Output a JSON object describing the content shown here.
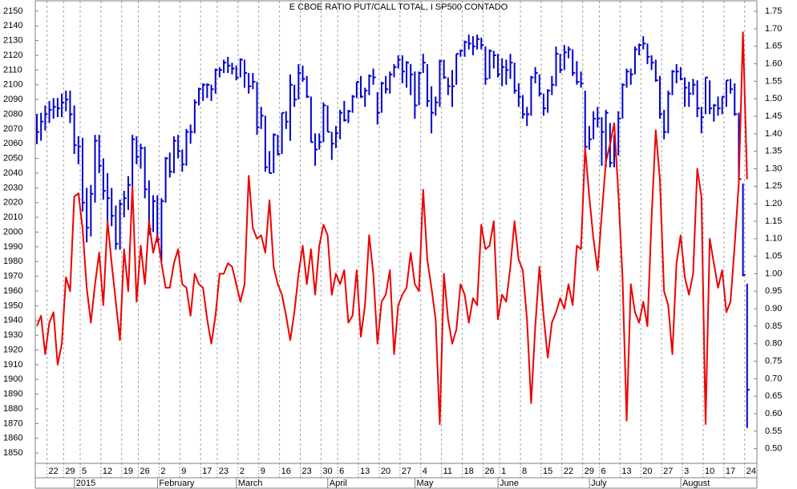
{
  "chart_data": {
    "type": "ohlc-line",
    "title": "E CBOE RATIO PUT/CALL TOTAL, I SP500 CONTADO",
    "categories": [
      null,
      null,
      null,
      "22",
      null,
      null,
      null,
      "29",
      null,
      null,
      null,
      "5",
      null,
      null,
      null,
      null,
      "12",
      null,
      null,
      null,
      null,
      "19",
      null,
      null,
      null,
      "26",
      null,
      null,
      null,
      null,
      "2",
      null,
      null,
      null,
      null,
      "9",
      null,
      null,
      null,
      null,
      "17",
      null,
      null,
      null,
      "23",
      null,
      null,
      null,
      null,
      "2",
      null,
      null,
      null,
      null,
      "9",
      null,
      null,
      null,
      null,
      "16",
      null,
      null,
      null,
      null,
      "23",
      null,
      null,
      null,
      null,
      "30",
      null,
      null,
      null,
      "6",
      null,
      null,
      null,
      null,
      "13",
      null,
      null,
      null,
      null,
      "20",
      null,
      null,
      null,
      null,
      "27",
      null,
      null,
      null,
      null,
      "4",
      null,
      null,
      null,
      null,
      "11",
      null,
      null,
      null,
      null,
      "18",
      null,
      null,
      null,
      null,
      "26",
      null,
      null,
      null,
      "1",
      null,
      null,
      null,
      null,
      "8",
      null,
      null,
      null,
      null,
      "15",
      null,
      null,
      null,
      null,
      "22",
      null,
      null,
      null,
      null,
      "29",
      null,
      null,
      null,
      "6",
      null,
      null,
      null,
      null,
      "13",
      null,
      null,
      null,
      null,
      "20",
      null,
      null,
      null,
      null,
      "27",
      null,
      null,
      null,
      null,
      "3",
      null,
      null,
      null,
      null,
      "10",
      null,
      null,
      null,
      null,
      "17",
      null,
      null,
      null,
      null,
      "24"
    ],
    "months": [
      null,
      null,
      null,
      null,
      null,
      null,
      null,
      null,
      null,
      null,
      "2015",
      null,
      null,
      null,
      null,
      null,
      null,
      null,
      null,
      null,
      null,
      null,
      null,
      null,
      null,
      null,
      null,
      null,
      null,
      null,
      "February",
      null,
      null,
      null,
      null,
      null,
      null,
      null,
      null,
      null,
      null,
      null,
      null,
      null,
      null,
      null,
      null,
      null,
      null,
      "March",
      null,
      null,
      null,
      null,
      null,
      null,
      null,
      null,
      null,
      null,
      null,
      null,
      null,
      null,
      null,
      null,
      null,
      null,
      null,
      null,
      null,
      "April",
      null,
      null,
      null,
      null,
      null,
      null,
      null,
      null,
      null,
      null,
      null,
      null,
      null,
      null,
      null,
      null,
      null,
      null,
      null,
      null,
      "May",
      null,
      null,
      null,
      null,
      null,
      null,
      null,
      null,
      null,
      null,
      null,
      null,
      null,
      null,
      null,
      null,
      null,
      null,
      null,
      "June",
      null,
      null,
      null,
      null,
      null,
      null,
      null,
      null,
      null,
      null,
      null,
      null,
      null,
      null,
      null,
      null,
      null,
      null,
      null,
      null,
      null,
      "July",
      null,
      null,
      null,
      null,
      null,
      null,
      null,
      null,
      null,
      null,
      null,
      null,
      null,
      null,
      null,
      null,
      null,
      null,
      null,
      null,
      null,
      "August",
      null,
      null,
      null,
      null,
      null,
      null,
      null,
      null,
      null,
      null,
      null,
      null,
      null,
      null,
      null
    ],
    "ohlc": {
      "color": "#0000cc",
      "high": [
        2080,
        2081,
        2086,
        2089,
        2091,
        2091,
        2094,
        2096,
        2096,
        2086,
        2065,
        2064,
        2030,
        2032,
        2066,
        2066,
        2050,
        2040,
        2030,
        2018,
        2022,
        2028,
        2038,
        2066,
        2065,
        2060,
        2058,
        2035,
        2025,
        2025,
        2023,
        2051,
        2054,
        2065,
        2066,
        2056,
        2070,
        2073,
        2090,
        2098,
        2101,
        2101,
        2100,
        2111,
        2112,
        2117,
        2119,
        2115,
        2113,
        2118,
        2117,
        2108,
        2108,
        2102,
        2085,
        2079,
        2055,
        2067,
        2066,
        2081,
        2082,
        2107,
        2100,
        2114,
        2113,
        2106,
        2092,
        2067,
        2067,
        2088,
        2086,
        2068,
        2072,
        2083,
        2089,
        2083,
        2093,
        2102,
        2106,
        2098,
        2107,
        2111,
        2095,
        2102,
        2106,
        2109,
        2114,
        2120,
        2120,
        2116,
        2114,
        2109,
        2109,
        2121,
        2114,
        2099,
        2092,
        2117,
        2117,
        2105,
        2110,
        2121,
        2124,
        2130,
        2134,
        2133,
        2134,
        2132,
        2126,
        2124,
        2123,
        2121,
        2118,
        2117,
        2121,
        2115,
        2101,
        2093,
        2085,
        2106,
        2112,
        2107,
        2094,
        2097,
        2106,
        2126,
        2121,
        2127,
        2126,
        2124,
        2116,
        2109,
        2096,
        2072,
        2082,
        2085,
        2078,
        2083,
        2074,
        2066,
        2082,
        2101,
        2111,
        2111,
        2126,
        2128,
        2133,
        2128,
        2120,
        2117,
        2106,
        2083,
        2096,
        2110,
        2114,
        2112,
        2105,
        2102,
        2104,
        2103,
        2085,
        2105,
        2103,
        2087,
        2092,
        2092,
        2103,
        2104,
        2101,
        2081,
        2033,
        1965
      ],
      "low": [
        2060,
        2062,
        2069,
        2074,
        2077,
        2078,
        2078,
        2082,
        2074,
        2053,
        2046,
        2014,
        1993,
        1997,
        2020,
        2040,
        2022,
        2005,
        2004,
        1988,
        1988,
        2010,
        2015,
        2030,
        2046,
        2043,
        2023,
        1998,
        2000,
        1993,
        1980,
        2020,
        2037,
        2040,
        2050,
        2041,
        2045,
        2060,
        2067,
        2086,
        2089,
        2091,
        2089,
        2094,
        2105,
        2108,
        2108,
        2107,
        2103,
        2105,
        2098,
        2094,
        2097,
        2066,
        2070,
        2041,
        2040,
        2040,
        2052,
        2053,
        2070,
        2062,
        2085,
        2090,
        2102,
        2091,
        2061,
        2045,
        2056,
        2061,
        2068,
        2049,
        2057,
        2063,
        2075,
        2074,
        2081,
        2091,
        2091,
        2085,
        2093,
        2100,
        2073,
        2081,
        2094,
        2094,
        2105,
        2111,
        2101,
        2098,
        2093,
        2077,
        2086,
        2108,
        2085,
        2067,
        2079,
        2085,
        2104,
        2093,
        2085,
        2100,
        2119,
        2119,
        2124,
        2120,
        2124,
        2124,
        2100,
        2104,
        2111,
        2105,
        2099,
        2100,
        2104,
        2094,
        2085,
        2077,
        2072,
        2079,
        2101,
        2092,
        2079,
        2081,
        2093,
        2099,
        2108,
        2110,
        2118,
        2106,
        2100,
        2098,
        2056,
        2056,
        2063,
        2071,
        2045,
        2044,
        2044,
        2044,
        2052,
        2077,
        2098,
        2100,
        2107,
        2120,
        2124,
        2114,
        2110,
        2102,
        2077,
        2063,
        2067,
        2093,
        2101,
        2103,
        2085,
        2085,
        2093,
        2078,
        2067,
        2080,
        2080,
        2075,
        2079,
        2080,
        2085,
        2094,
        2079,
        2035,
        1970,
        1867
      ],
      "close": [
        2068,
        2075,
        2080,
        2083,
        2085,
        2084,
        2088,
        2090,
        2080,
        2059,
        2058,
        2020,
        2003,
        2026,
        2062,
        2045,
        2028,
        2023,
        2011,
        1992,
        2019,
        2023,
        2032,
        2063,
        2051,
        2057,
        2029,
        2002,
        2021,
        1995,
        2021,
        2050,
        2041,
        2062,
        2055,
        2046,
        2068,
        2068,
        2088,
        2097,
        2100,
        2100,
        2097,
        2110,
        2110,
        2115,
        2113,
        2111,
        2105,
        2117,
        2108,
        2099,
        2102,
        2071,
        2079,
        2044,
        2040,
        2066,
        2053,
        2081,
        2075,
        2100,
        2090,
        2108,
        2104,
        2092,
        2061,
        2056,
        2061,
        2086,
        2068,
        2060,
        2067,
        2081,
        2076,
        2082,
        2092,
        2102,
        2092,
        2096,
        2106,
        2105,
        2081,
        2101,
        2097,
        2107,
        2112,
        2117,
        2109,
        2115,
        2107,
        2086,
        2108,
        2115,
        2089,
        2081,
        2088,
        2116,
        2105,
        2099,
        2099,
        2121,
        2123,
        2129,
        2128,
        2126,
        2131,
        2127,
        2104,
        2123,
        2120,
        2107,
        2112,
        2110,
        2115,
        2096,
        2092,
        2080,
        2080,
        2105,
        2108,
        2094,
        2084,
        2096,
        2100,
        2121,
        2110,
        2122,
        2124,
        2108,
        2102,
        2101,
        2058,
        2063,
        2077,
        2077,
        2068,
        2081,
        2047,
        2052,
        2077,
        2100,
        2109,
        2107,
        2124,
        2127,
        2128,
        2119,
        2115,
        2103,
        2080,
        2068,
        2094,
        2109,
        2109,
        2104,
        2098,
        2094,
        2100,
        2084,
        2078,
        2105,
        2084,
        2086,
        2084,
        2092,
        2103,
        2097,
        2080,
        2036,
        1971,
        1893
      ]
    },
    "line": {
      "color": "#ee0000",
      "axis": "y2",
      "values": [
        0.85,
        0.88,
        0.77,
        0.86,
        0.89,
        0.74,
        0.8,
        0.99,
        0.95,
        1.22,
        1.23,
        1.13,
        0.96,
        0.86,
        0.97,
        1.06,
        0.91,
        1.15,
        1.03,
        0.92,
        0.81,
        1.07,
        0.95,
        1.25,
        0.92,
        1.08,
        0.97,
        1.15,
        1.06,
        1.11,
        1.03,
        0.96,
        0.96,
        1.03,
        1.07,
        0.97,
        0.96,
        0.88,
        1.0,
        0.97,
        0.96,
        0.87,
        0.8,
        0.88,
        1.0,
        1.0,
        1.03,
        1.02,
        0.97,
        0.92,
        0.97,
        1.28,
        1.13,
        1.1,
        1.11,
        1.06,
        1.21,
        1.02,
        0.97,
        0.94,
        0.88,
        0.81,
        0.89,
        1.0,
        1.08,
        0.97,
        1.07,
        0.94,
        1.08,
        1.14,
        1.11,
        0.94,
        1.0,
        0.97,
        1.01,
        0.86,
        0.88,
        1.01,
        0.82,
        0.91,
        1.11,
        1.0,
        0.8,
        0.92,
        0.94,
        1.01,
        0.77,
        0.91,
        0.94,
        0.96,
        1.06,
        0.97,
        0.95,
        1.24,
        1.04,
        0.96,
        0.87,
        0.57,
        1.0,
        0.87,
        0.8,
        0.84,
        0.97,
        0.94,
        0.86,
        0.93,
        0.91,
        1.14,
        1.07,
        1.08,
        1.15,
        0.87,
        0.94,
        0.92,
        1.02,
        1.15,
        1.04,
        1.01,
        0.87,
        0.63,
        0.85,
        1.02,
        0.88,
        0.76,
        0.86,
        0.89,
        0.93,
        0.9,
        0.97,
        0.91,
        1.08,
        1.07,
        1.36,
        1.22,
        1.1,
        1.01,
        1.17,
        1.32,
        1.37,
        1.43,
        1.23,
        0.99,
        0.58,
        0.97,
        0.89,
        0.86,
        0.92,
        0.85,
        1.16,
        1.41,
        1.27,
        0.95,
        0.91,
        0.77,
        1.03,
        1.11,
        0.99,
        0.94,
        1.0,
        1.3,
        1.22,
        0.57,
        1.1,
        1.03,
        0.96,
        1.01,
        0.89,
        0.92,
        1.08,
        1.26,
        1.69,
        1.27
      ]
    },
    "ylim": [
      1843,
      2157
    ],
    "yticks": [
      1850,
      1860,
      1870,
      1880,
      1890,
      1900,
      1910,
      1920,
      1930,
      1940,
      1950,
      1960,
      1970,
      1980,
      1990,
      2000,
      2010,
      2020,
      2030,
      2040,
      2050,
      2060,
      2070,
      2080,
      2090,
      2100,
      2110,
      2120,
      2130,
      2140,
      2150
    ],
    "y2lim": [
      0.458,
      1.78
    ],
    "y2ticks": [
      {
        "value": 0.5,
        "label": "0.50"
      },
      0.55,
      {
        "value": 0.6,
        "label": "0.60"
      },
      0.65,
      {
        "value": 0.7,
        "label": "0.70"
      },
      0.75,
      {
        "value": 0.8,
        "label": "0.80"
      },
      0.85,
      {
        "value": 0.9,
        "label": "0.90"
      },
      0.95,
      {
        "value": 1,
        "label": "1.00"
      },
      1.05,
      {
        "value": 1.1,
        "label": "1.10"
      },
      1.15,
      {
        "value": 1.2,
        "label": "1.20"
      },
      1.25,
      {
        "value": 1.3,
        "label": "1.30"
      },
      1.35,
      {
        "value": 1.4,
        "label": "1.40"
      },
      1.45,
      {
        "value": 1.5,
        "label": "1.50"
      },
      1.55,
      {
        "value": 1.6,
        "label": "1.60"
      },
      1.65,
      {
        "value": 1.7,
        "label": "1.70"
      },
      1.75
    ],
    "xgrid": true
  }
}
